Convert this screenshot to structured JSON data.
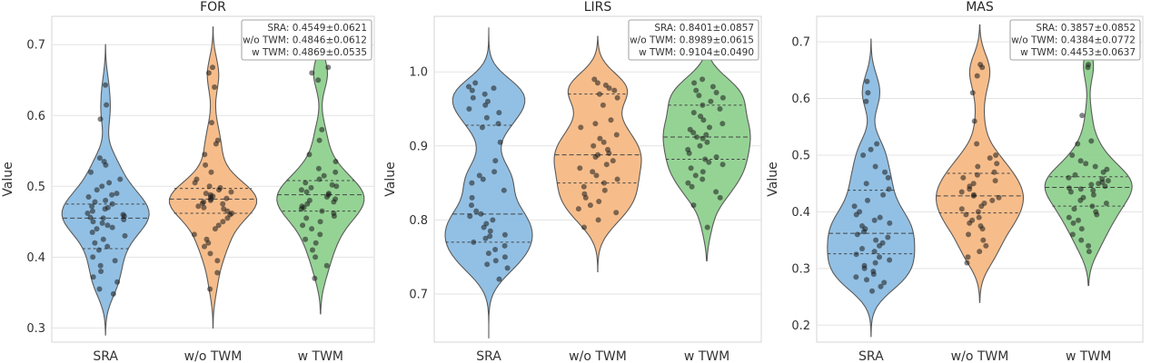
{
  "chart_data": [
    {
      "type": "violin",
      "title": "FOR",
      "xlabel": "",
      "ylabel": "Value",
      "categories": [
        "SRA",
        "w/o TWM",
        "w TWM"
      ],
      "yticks": [
        "0.3",
        "0.4",
        "0.5",
        "0.6",
        "0.7"
      ],
      "ylim": [
        0.28,
        0.74
      ],
      "grid": true,
      "colors": [
        "#8cbde3",
        "#f5b985",
        "#8fd18f"
      ],
      "stats_box": [
        "SRA: 0.4549±0.0621",
        "w/o TWM: 0.4846±0.0612",
        "w TWM: 0.4869±0.0535"
      ],
      "series": [
        {
          "name": "SRA",
          "range": [
            0.29,
            0.7
          ],
          "quartiles": [
            0.412,
            0.455,
            0.475
          ],
          "points": [
            0.643,
            0.615,
            0.595,
            0.54,
            0.535,
            0.53,
            0.52,
            0.51,
            0.505,
            0.5,
            0.495,
            0.49,
            0.488,
            0.485,
            0.48,
            0.478,
            0.475,
            0.472,
            0.47,
            0.468,
            0.465,
            0.462,
            0.46,
            0.458,
            0.456,
            0.455,
            0.453,
            0.45,
            0.448,
            0.445,
            0.442,
            0.44,
            0.435,
            0.43,
            0.425,
            0.42,
            0.415,
            0.41,
            0.4,
            0.395,
            0.388,
            0.38,
            0.372,
            0.365,
            0.355,
            0.348
          ]
        },
        {
          "name": "w/o TWM",
          "range": [
            0.3,
            0.725
          ],
          "quartiles": [
            0.462,
            0.482,
            0.497
          ],
          "points": [
            0.668,
            0.66,
            0.64,
            0.59,
            0.565,
            0.56,
            0.545,
            0.53,
            0.52,
            0.51,
            0.505,
            0.5,
            0.498,
            0.495,
            0.492,
            0.49,
            0.488,
            0.486,
            0.485,
            0.483,
            0.482,
            0.48,
            0.478,
            0.476,
            0.475,
            0.472,
            0.47,
            0.468,
            0.465,
            0.462,
            0.46,
            0.455,
            0.45,
            0.445,
            0.44,
            0.432,
            0.425,
            0.42,
            0.415,
            0.405,
            0.395,
            0.378,
            0.355
          ]
        },
        {
          "name": "w TWM",
          "range": [
            0.32,
            0.72
          ],
          "quartiles": [
            0.465,
            0.488,
            0.508
          ],
          "points": [
            0.668,
            0.66,
            0.65,
            0.58,
            0.565,
            0.545,
            0.535,
            0.525,
            0.52,
            0.515,
            0.51,
            0.505,
            0.502,
            0.5,
            0.498,
            0.495,
            0.492,
            0.49,
            0.488,
            0.485,
            0.482,
            0.48,
            0.478,
            0.475,
            0.472,
            0.47,
            0.468,
            0.465,
            0.462,
            0.458,
            0.455,
            0.45,
            0.445,
            0.44,
            0.432,
            0.425,
            0.42,
            0.41,
            0.4,
            0.388,
            0.37
          ]
        }
      ]
    },
    {
      "type": "violin",
      "title": "LIRS",
      "xlabel": "",
      "ylabel": "Value",
      "categories": [
        "SRA",
        "w/o TWM",
        "w TWM"
      ],
      "yticks": [
        "0.7",
        "0.8",
        "0.9",
        "1.0"
      ],
      "ylim": [
        0.635,
        1.075
      ],
      "grid": true,
      "colors": [
        "#8cbde3",
        "#f5b985",
        "#8fd18f"
      ],
      "stats_box": [
        "SRA: 0.8401±0.0857",
        "w/o TWM: 0.8989±0.0615",
        "w TWM: 0.9104±0.0490"
      ],
      "series": [
        {
          "name": "SRA",
          "range": [
            0.64,
            1.06
          ],
          "quartiles": [
            0.77,
            0.808,
            0.928
          ],
          "points": [
            0.985,
            0.98,
            0.978,
            0.975,
            0.97,
            0.965,
            0.96,
            0.955,
            0.95,
            0.945,
            0.938,
            0.93,
            0.925,
            0.905,
            0.88,
            0.865,
            0.86,
            0.855,
            0.85,
            0.84,
            0.83,
            0.82,
            0.812,
            0.808,
            0.805,
            0.8,
            0.795,
            0.79,
            0.785,
            0.78,
            0.778,
            0.775,
            0.77,
            0.765,
            0.76,
            0.755,
            0.75,
            0.745,
            0.74,
            0.735,
            0.72
          ]
        },
        {
          "name": "w/o TWM",
          "range": [
            0.73,
            1.048
          ],
          "quartiles": [
            0.85,
            0.888,
            0.97
          ],
          "points": [
            0.99,
            0.985,
            0.982,
            0.978,
            0.975,
            0.97,
            0.965,
            0.955,
            0.935,
            0.93,
            0.925,
            0.915,
            0.91,
            0.905,
            0.9,
            0.895,
            0.89,
            0.888,
            0.885,
            0.88,
            0.875,
            0.87,
            0.865,
            0.86,
            0.855,
            0.85,
            0.845,
            0.84,
            0.835,
            0.83,
            0.825,
            0.82,
            0.815,
            0.81,
            0.8,
            0.79
          ]
        },
        {
          "name": "w TWM",
          "range": [
            0.745,
            1.045
          ],
          "quartiles": [
            0.882,
            0.912,
            0.955
          ],
          "points": [
            0.99,
            0.985,
            0.98,
            0.975,
            0.972,
            0.968,
            0.965,
            0.96,
            0.955,
            0.95,
            0.945,
            0.94,
            0.935,
            0.93,
            0.925,
            0.922,
            0.918,
            0.915,
            0.912,
            0.91,
            0.905,
            0.9,
            0.895,
            0.89,
            0.885,
            0.882,
            0.878,
            0.875,
            0.87,
            0.865,
            0.86,
            0.855,
            0.85,
            0.845,
            0.838,
            0.83,
            0.82,
            0.79
          ]
        }
      ]
    },
    {
      "type": "violin",
      "title": "MAS",
      "xlabel": "",
      "ylabel": "Value",
      "categories": [
        "SRA",
        "w/o TWM",
        "w TWM"
      ],
      "yticks": [
        "0.2",
        "0.3",
        "0.4",
        "0.5",
        "0.6",
        "0.7"
      ],
      "ylim": [
        0.17,
        0.745
      ],
      "grid": true,
      "colors": [
        "#8cbde3",
        "#f5b985",
        "#8fd18f"
      ],
      "stats_box": [
        "SRA: 0.3857±0.0852",
        "w/o TWM: 0.4384±0.0772",
        "w TWM: 0.4453±0.0637"
      ],
      "series": [
        {
          "name": "SRA",
          "range": [
            0.18,
            0.705
          ],
          "quartiles": [
            0.326,
            0.362,
            0.438
          ],
          "points": [
            0.63,
            0.61,
            0.595,
            0.52,
            0.51,
            0.5,
            0.48,
            0.47,
            0.46,
            0.45,
            0.44,
            0.43,
            0.42,
            0.41,
            0.4,
            0.395,
            0.39,
            0.385,
            0.38,
            0.375,
            0.37,
            0.365,
            0.36,
            0.355,
            0.35,
            0.345,
            0.34,
            0.335,
            0.33,
            0.325,
            0.32,
            0.315,
            0.31,
            0.305,
            0.3,
            0.295,
            0.29,
            0.285,
            0.28,
            0.275,
            0.268,
            0.26
          ]
        },
        {
          "name": "w/o TWM",
          "range": [
            0.24,
            0.73
          ],
          "quartiles": [
            0.398,
            0.428,
            0.468
          ],
          "points": [
            0.66,
            0.655,
            0.64,
            0.61,
            0.56,
            0.52,
            0.5,
            0.495,
            0.485,
            0.48,
            0.47,
            0.465,
            0.46,
            0.455,
            0.45,
            0.445,
            0.44,
            0.435,
            0.43,
            0.428,
            0.425,
            0.42,
            0.415,
            0.41,
            0.405,
            0.4,
            0.395,
            0.39,
            0.385,
            0.38,
            0.375,
            0.37,
            0.36,
            0.35,
            0.34,
            0.33,
            0.32,
            0.31
          ]
        },
        {
          "name": "w TWM",
          "range": [
            0.27,
            0.725
          ],
          "quartiles": [
            0.41,
            0.443,
            0.462
          ],
          "points": [
            0.66,
            0.655,
            0.57,
            0.525,
            0.52,
            0.5,
            0.49,
            0.485,
            0.48,
            0.475,
            0.47,
            0.465,
            0.46,
            0.458,
            0.455,
            0.452,
            0.45,
            0.448,
            0.445,
            0.442,
            0.44,
            0.438,
            0.435,
            0.43,
            0.425,
            0.42,
            0.415,
            0.41,
            0.405,
            0.4,
            0.395,
            0.39,
            0.385,
            0.38,
            0.37,
            0.36,
            0.35,
            0.34,
            0.33
          ]
        }
      ]
    }
  ]
}
